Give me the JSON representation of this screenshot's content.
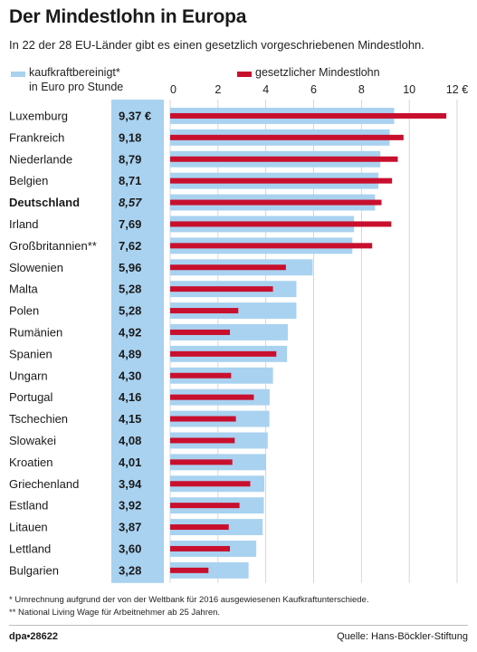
{
  "title": "Der Mindestlohn in Europa",
  "subtitle": "In 22 der 28 EU-Länder gibt es einen gesetzlich vorgeschriebenen Mindestlohn.",
  "colors": {
    "blue": "#a9d2f0",
    "red": "#c8102e",
    "text": "#1a1a1a",
    "grid": "#cccccc"
  },
  "chart_data": {
    "type": "bar",
    "orientation": "horizontal",
    "xlim": [
      0,
      12
    ],
    "x_ticks": [
      "0",
      "2",
      "4",
      "6",
      "8",
      "10",
      "12 €"
    ],
    "legend": {
      "placement": "top"
    },
    "categories": [
      "Luxemburg",
      "Frankreich",
      "Niederlande",
      "Belgien",
      "Deutschland",
      "Irland",
      "Großbritannien**",
      "Slowenien",
      "Malta",
      "Polen",
      "Rumänien",
      "Spanien",
      "Ungarn",
      "Portugal",
      "Tschechien",
      "Slowakei",
      "Kroatien",
      "Griechenland",
      "Estland",
      "Litauen",
      "Lettland",
      "Bulgarien"
    ],
    "highlight": "Deutschland",
    "value_labels": [
      "9,37 €",
      "9,18",
      "8,79",
      "8,71",
      "8,57",
      "7,69",
      "7,62",
      "5,96",
      "5,28",
      "5,28",
      "4,92",
      "4,89",
      "4,30",
      "4,16",
      "4,15",
      "4,08",
      "4,01",
      "3,94",
      "3,92",
      "3,87",
      "3,60",
      "3,28"
    ],
    "series": [
      {
        "name": "kaufkraftbereinigt* in Euro pro Stunde",
        "legend_lines": [
          "kaufkraftbereinigt*",
          "in Euro pro Stunde"
        ],
        "color": "#a9d2f0",
        "values": [
          9.37,
          9.18,
          8.79,
          8.71,
          8.57,
          7.69,
          7.62,
          5.96,
          5.28,
          5.28,
          4.92,
          4.89,
          4.3,
          4.16,
          4.15,
          4.08,
          4.01,
          3.94,
          3.92,
          3.87,
          3.6,
          3.28
        ]
      },
      {
        "name": "gesetzlicher Mindestlohn",
        "legend_lines": [
          "gesetzlicher Mindestlohn"
        ],
        "color": "#c8102e",
        "values": [
          11.55,
          9.76,
          9.52,
          9.28,
          8.84,
          9.25,
          8.45,
          4.84,
          4.3,
          2.85,
          2.5,
          4.44,
          2.55,
          3.5,
          2.75,
          2.7,
          2.6,
          3.35,
          2.9,
          2.45,
          2.5,
          1.6
        ]
      }
    ]
  },
  "footnotes": [
    "* Umrechnung aufgrund der von der Weltbank für 2016 ausgewiesenen Kaufkraftunterschiede.",
    "** National Living Wage für Arbeitnehmer ab 25 Jahren."
  ],
  "brand": "dpa•28622",
  "source": "Quelle: Hans-Böckler-Stiftung"
}
